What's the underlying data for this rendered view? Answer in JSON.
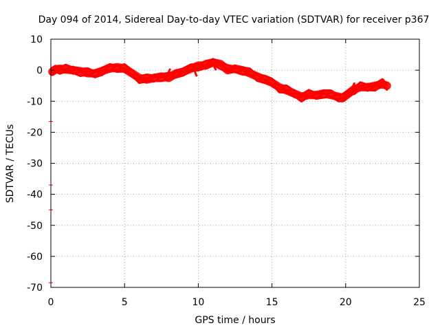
{
  "chart_data": {
    "type": "line",
    "title": "Day 094 of 2014, Sidereal Day-to-day VTEC variation (SDTVAR) for receiver p367",
    "xlabel": "GPS time / hours",
    "ylabel": "SDTVAR / TECUs",
    "xlim": [
      0,
      25
    ],
    "ylim": [
      -70,
      10
    ],
    "xticks": [
      0,
      5,
      10,
      15,
      20,
      25
    ],
    "yticks": [
      10,
      0,
      -10,
      -20,
      -30,
      -40,
      -50,
      -60,
      -70
    ],
    "grid": true,
    "colors": {
      "series": "#ff0000",
      "axis": "#000000",
      "grid": "#a0a0a0"
    },
    "series": [
      {
        "name": "SDTVAR",
        "color": "#ff0000",
        "band_width": 2.5,
        "x": [
          0.1,
          0.3,
          0.6,
          1.0,
          1.5,
          2.0,
          2.5,
          3.0,
          3.5,
          4.0,
          4.5,
          5.0,
          5.5,
          6.0,
          6.5,
          7.0,
          7.5,
          8.0,
          8.5,
          9.0,
          9.5,
          10.0,
          10.5,
          11.0,
          11.5,
          12.0,
          12.5,
          13.0,
          13.5,
          14.0,
          14.5,
          15.0,
          15.5,
          16.0,
          16.5,
          17.0,
          17.5,
          18.0,
          18.5,
          19.0,
          19.5,
          19.8,
          20.2,
          20.6,
          21.0,
          21.5,
          22.0,
          22.5,
          22.8
        ],
        "y": [
          -0.5,
          0.2,
          0.5,
          0.2,
          0.0,
          -0.3,
          -1.0,
          -1.0,
          -0.2,
          0.5,
          1.0,
          0.5,
          -1.0,
          -2.5,
          -3.0,
          -2.5,
          -2.0,
          -2.5,
          -1.0,
          -0.5,
          0.5,
          1.5,
          1.5,
          2.5,
          2.0,
          0.0,
          0.5,
          0.0,
          -1.0,
          -2.0,
          -3.0,
          -4.0,
          -5.5,
          -6.5,
          -7.5,
          -8.5,
          -8.0,
          -8.0,
          -7.5,
          -8.0,
          -8.5,
          -9.0,
          -7.5,
          -6.0,
          -5.5,
          -5.5,
          -5.0,
          -4.5,
          -5.0
        ],
        "jumps": [
          {
            "x": 20.3,
            "y_from": -8.0,
            "y_to": -4.0
          },
          {
            "x": 9.6,
            "y_from": 1.5,
            "y_to": -2.0
          },
          {
            "x": 10.9,
            "y_from": 3.0,
            "y_to": 0.0
          },
          {
            "x": 7.8,
            "y_from": -2.5,
            "y_to": 0.5
          }
        ]
      }
    ],
    "outliers": [
      {
        "x": 0.0,
        "y": -16.5
      },
      {
        "x": 0.0,
        "y": -37.0
      },
      {
        "x": 0.0,
        "y": -45.0
      },
      {
        "x": 0.0,
        "y": -68.5
      }
    ]
  }
}
